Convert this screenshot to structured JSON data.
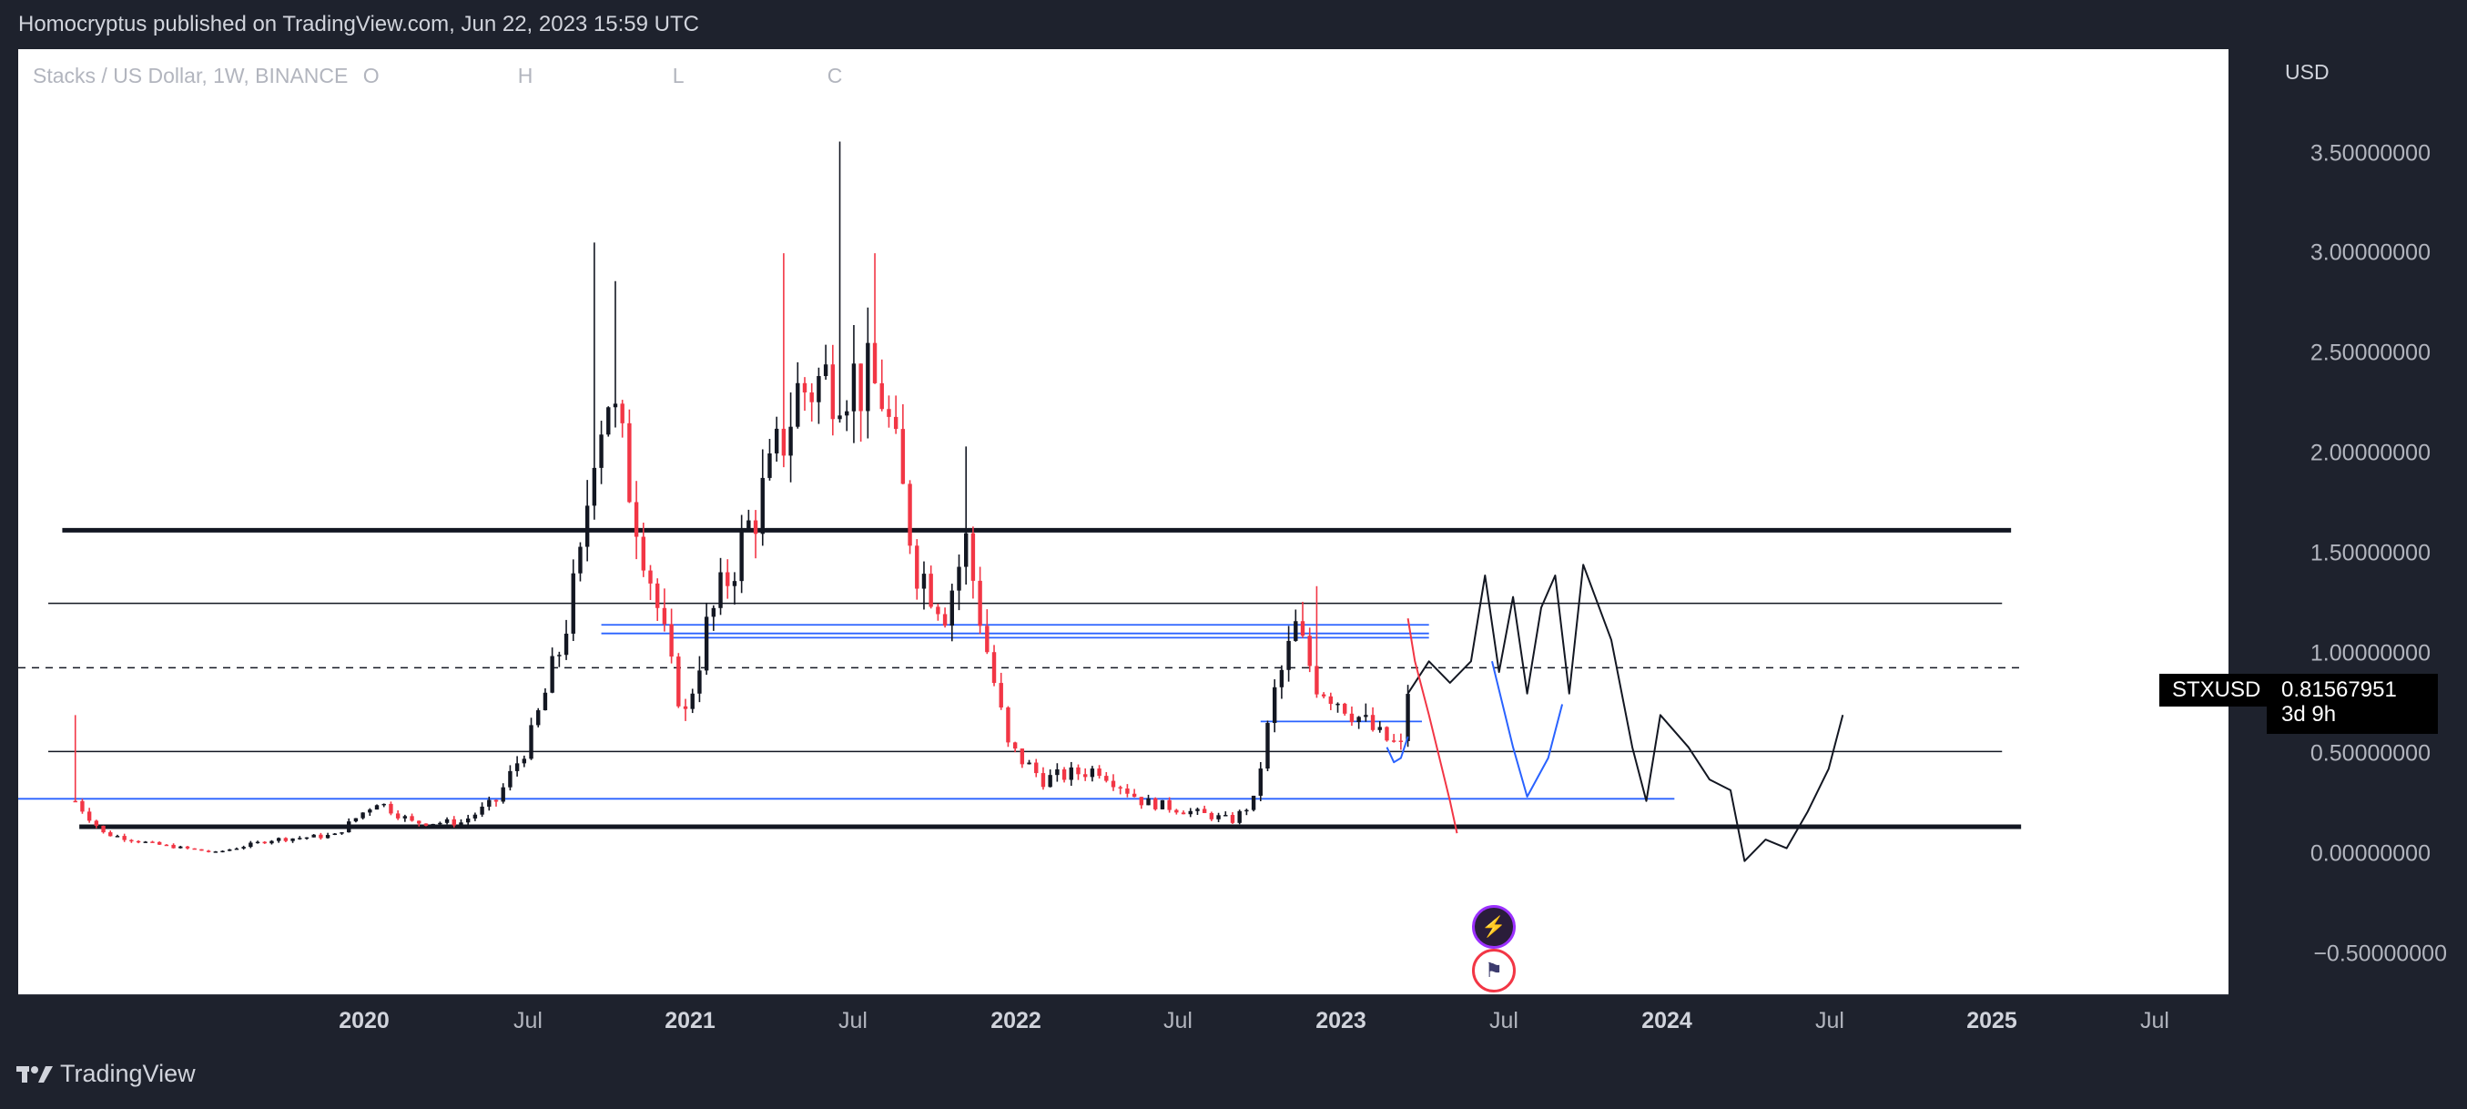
{
  "header": {
    "published": "Homocryptus published on TradingView.com, Jun 22, 2023 15:59 UTC"
  },
  "legend": {
    "title": "Stacks / US Dollar, 1W, BINANCE",
    "o": "O",
    "h": "H",
    "l": "L",
    "c": "C"
  },
  "price_axis": {
    "unit": "USD",
    "ticks": [
      "3.50000000",
      "3.00000000",
      "2.50000000",
      "2.00000000",
      "1.50000000",
      "1.00000000",
      "0.50000000",
      "0.00000000",
      "−0.50000000"
    ]
  },
  "time_axis": {
    "ticks": [
      {
        "label": "2020",
        "year": true
      },
      {
        "label": "Jul",
        "year": false
      },
      {
        "label": "2021",
        "year": true
      },
      {
        "label": "Jul",
        "year": false
      },
      {
        "label": "2022",
        "year": true
      },
      {
        "label": "Jul",
        "year": false
      },
      {
        "label": "2023",
        "year": true
      },
      {
        "label": "Jul",
        "year": false
      },
      {
        "label": "2024",
        "year": true
      },
      {
        "label": "Jul",
        "year": false
      },
      {
        "label": "2025",
        "year": true
      },
      {
        "label": "Jul",
        "year": false
      }
    ]
  },
  "symbol_tag": {
    "symbol": "STXUSD",
    "price": "0.81567951",
    "countdown": "3d 9h"
  },
  "footer": {
    "brand": "TradingView"
  },
  "event_icons": [
    "lightning-icon",
    "us-flag-icon"
  ],
  "colors": {
    "up": "#131722",
    "down": "#f23645",
    "level_blue": "#2962ff",
    "background": "#1e222d"
  },
  "chart_data": {
    "type": "candlestick",
    "symbol": "STXUSD",
    "interval": "1W",
    "exchange": "BINANCE",
    "ylim": [
      -0.6,
      3.8
    ],
    "xlim": [
      "2019-09-01",
      "2025-09-15"
    ],
    "anchors": [
      [
        "2019-10-28",
        0.3
      ],
      [
        "2019-11-25",
        0.15
      ],
      [
        "2020-01-13",
        0.1
      ],
      [
        "2020-03-16",
        0.06
      ],
      [
        "2020-05-11",
        0.12
      ],
      [
        "2020-07-13",
        0.14
      ],
      [
        "2020-08-24",
        0.3
      ],
      [
        "2020-09-28",
        0.2
      ],
      [
        "2020-11-16",
        0.2
      ],
      [
        "2020-12-21",
        0.3
      ],
      [
        "2021-01-25",
        0.6
      ],
      [
        "2021-02-22",
        1.0
      ],
      [
        "2021-03-15",
        1.4
      ],
      [
        "2021-03-29",
        2.0
      ],
      [
        "2021-04-12",
        2.2
      ],
      [
        "2021-05-17",
        1.5
      ],
      [
        "2021-06-14",
        0.9
      ],
      [
        "2021-06-28",
        0.7
      ],
      [
        "2021-07-19",
        1.1
      ],
      [
        "2021-08-23",
        1.5
      ],
      [
        "2021-09-20",
        1.8
      ],
      [
        "2021-10-18",
        2.2
      ],
      [
        "2021-11-29",
        2.3
      ],
      [
        "2022-01-10",
        2.2
      ],
      [
        "2022-02-14",
        1.4
      ],
      [
        "2022-03-14",
        1.2
      ],
      [
        "2022-04-04",
        1.5
      ],
      [
        "2022-04-25",
        1.0
      ],
      [
        "2022-05-16",
        0.55
      ],
      [
        "2022-06-20",
        0.4
      ],
      [
        "2022-08-15",
        0.45
      ],
      [
        "2022-09-26",
        0.3
      ],
      [
        "2022-11-14",
        0.25
      ],
      [
        "2022-12-26",
        0.21
      ],
      [
        "2023-01-16",
        0.3
      ],
      [
        "2023-02-06",
        0.8
      ],
      [
        "2023-02-27",
        1.1
      ],
      [
        "2023-03-20",
        0.85
      ],
      [
        "2023-04-17",
        0.75
      ],
      [
        "2023-05-22",
        0.6
      ],
      [
        "2023-06-12",
        0.55
      ],
      [
        "2023-06-19",
        0.82
      ]
    ],
    "wicks": [
      {
        "x": "2019-10-28",
        "high": 0.7
      },
      {
        "x": "2021-03-29",
        "high": 2.9
      },
      {
        "x": "2021-04-19",
        "high": 2.72
      },
      {
        "x": "2021-10-04",
        "high": 2.85
      },
      {
        "x": "2021-11-29",
        "high": 3.37
      },
      {
        "x": "2022-01-03",
        "high": 2.85
      },
      {
        "x": "2022-04-04",
        "high": 1.95
      },
      {
        "x": "2023-03-20",
        "high": 1.3
      }
    ],
    "levels": [
      {
        "y": 1.56,
        "from": "2019-10-15",
        "to": "2025-02-10",
        "style": "thick"
      },
      {
        "y": 1.22,
        "from": "2019-10-01",
        "to": "2025-02-01",
        "style": "thin"
      },
      {
        "y": 0.92,
        "from": "2019-09-01",
        "to": "2025-02-20",
        "style": "dashed"
      },
      {
        "y": 0.53,
        "from": "2019-10-01",
        "to": "2025-02-01",
        "style": "thin"
      },
      {
        "y": 0.18,
        "from": "2019-11-01",
        "to": "2025-02-20",
        "style": "thick"
      },
      {
        "y": 1.12,
        "from": "2021-04-05",
        "to": "2023-07-10",
        "style": "blue"
      },
      {
        "y": 1.08,
        "from": "2021-04-05",
        "to": "2023-07-10",
        "style": "blue"
      },
      {
        "y": 1.06,
        "from": "2021-06-14",
        "to": "2023-07-10",
        "style": "blue"
      },
      {
        "y": 0.31,
        "from": "2019-09-01",
        "to": "2024-03-11",
        "style": "blue"
      },
      {
        "y": 0.67,
        "from": "2023-01-23",
        "to": "2023-07-03",
        "style": "blue"
      }
    ],
    "projection_black": [
      [
        "2023-06-19",
        0.8
      ],
      [
        "2023-07-10",
        0.95
      ],
      [
        "2023-07-31",
        0.85
      ],
      [
        "2023-08-21",
        0.95
      ],
      [
        "2023-09-04",
        1.35
      ],
      [
        "2023-09-18",
        0.9
      ],
      [
        "2023-10-02",
        1.25
      ],
      [
        "2023-10-16",
        0.8
      ],
      [
        "2023-10-30",
        1.2
      ],
      [
        "2023-11-13",
        1.35
      ],
      [
        "2023-11-27",
        0.8
      ],
      [
        "2023-12-11",
        1.4
      ],
      [
        "2024-01-08",
        1.05
      ],
      [
        "2024-01-29",
        0.55
      ],
      [
        "2024-02-12",
        0.3
      ],
      [
        "2024-02-26",
        0.7
      ],
      [
        "2024-03-25",
        0.55
      ],
      [
        "2024-04-15",
        0.4
      ],
      [
        "2024-05-06",
        0.35
      ],
      [
        "2024-05-20",
        0.02
      ],
      [
        "2024-06-10",
        0.12
      ],
      [
        "2024-07-01",
        0.08
      ],
      [
        "2024-07-22",
        0.25
      ],
      [
        "2024-08-12",
        0.45
      ],
      [
        "2024-08-26",
        0.7
      ]
    ],
    "projection_red": [
      [
        "2023-06-19",
        1.15
      ],
      [
        "2023-06-26",
        0.95
      ],
      [
        "2023-07-10",
        0.7
      ],
      [
        "2023-07-31",
        0.3
      ],
      [
        "2023-08-07",
        0.15
      ]
    ],
    "projection_blue_a": [
      [
        "2023-05-29",
        0.55
      ],
      [
        "2023-06-05",
        0.48
      ],
      [
        "2023-06-12",
        0.5
      ],
      [
        "2023-06-19",
        0.6
      ]
    ],
    "projection_blue_b": [
      [
        "2023-09-11",
        0.95
      ],
      [
        "2023-10-02",
        0.55
      ],
      [
        "2023-10-16",
        0.32
      ],
      [
        "2023-11-06",
        0.5
      ],
      [
        "2023-11-20",
        0.75
      ]
    ]
  }
}
